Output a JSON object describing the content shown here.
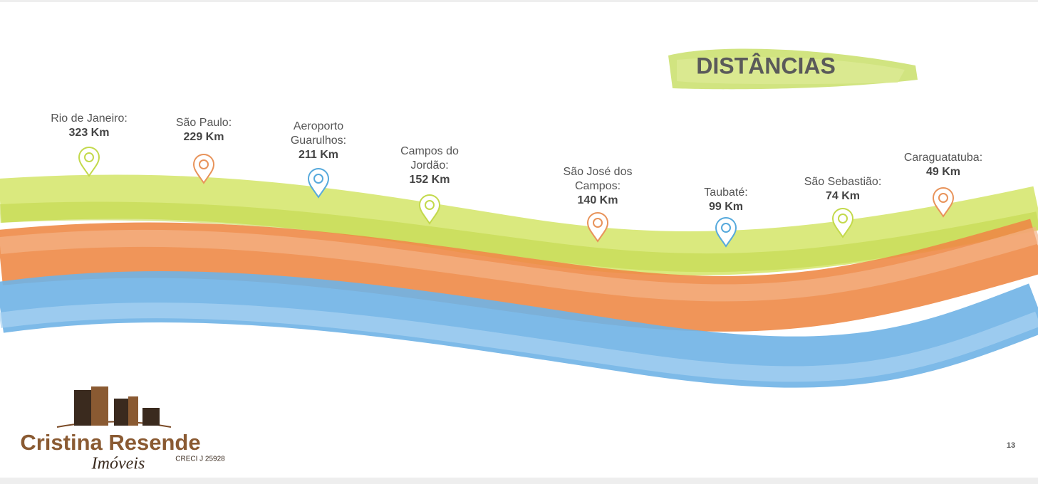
{
  "header": {
    "title": "DISTÂNCIAS"
  },
  "locations": [
    {
      "name": [
        "Rio de Janeiro:"
      ],
      "distance": "323 Km"
    },
    {
      "name": [
        "São Paulo:"
      ],
      "distance": "229 Km"
    },
    {
      "name": [
        "Aeroporto",
        "Guarulhos:"
      ],
      "distance": "211 Km"
    },
    {
      "name": [
        "Campos do",
        "Jordão:"
      ],
      "distance": "152 Km"
    },
    {
      "name": [
        "São José dos",
        "Campos:"
      ],
      "distance": "140 Km"
    },
    {
      "name": [
        "Taubaté:"
      ],
      "distance": "99 Km"
    },
    {
      "name": [
        "São Sebastião:"
      ],
      "distance": "74 Km"
    },
    {
      "name": [
        "Caraguatatuba:"
      ],
      "distance": "49 Km"
    }
  ],
  "logo": {
    "brand": "Cristina Resende",
    "subtitle": "Imóveis",
    "license": "CRECI J 25928"
  },
  "footer": {
    "page_number": "13"
  }
}
